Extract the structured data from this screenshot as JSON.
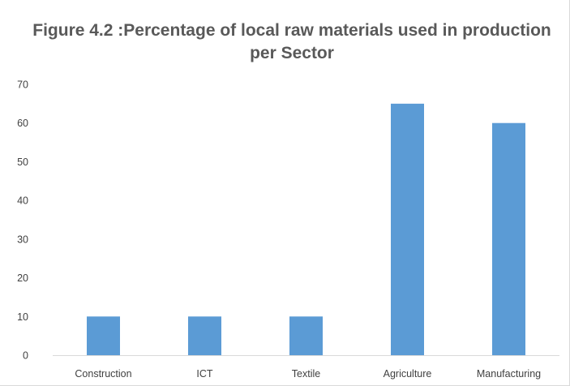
{
  "chart_data": {
    "type": "bar",
    "title": "Figure 4.2 :Percentage of local raw materials used in production per Sector",
    "categories": [
      "Construction",
      "ICT",
      "Textile",
      "Agriculture",
      "Manufacturing"
    ],
    "values": [
      10,
      10,
      10,
      65,
      60
    ],
    "xlabel": "",
    "ylabel": "",
    "ylim": [
      0,
      70
    ],
    "yticks": [
      0,
      10,
      20,
      30,
      40,
      50,
      60,
      70
    ],
    "grid": false,
    "legend": "none",
    "bar_color": "#5b9bd5",
    "axis_color": "#d9d9d9"
  }
}
